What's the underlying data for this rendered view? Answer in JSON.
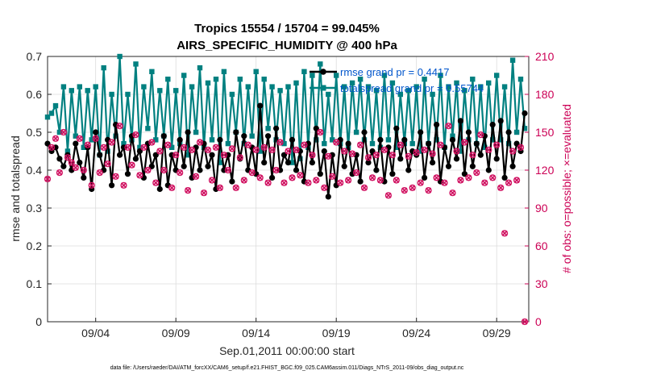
{
  "chart_data": {
    "type": "line",
    "title": "Tropics 15554 / 15704 = 99.045%",
    "subtitle": "AIRS_SPECIFIC_HUMIDITY @ 400 hPa",
    "xlabel": "Sep.01,2011 00:00:00 start",
    "ylabel_left": "rmse and totalspread",
    "ylabel_right": "# of obs: o=possible; ×=evaluated",
    "x_ticks": [
      "09/04",
      "09/09",
      "09/14",
      "09/19",
      "09/24",
      "09/29"
    ],
    "x_tick_days": [
      4,
      9,
      14,
      19,
      24,
      29
    ],
    "xlim": [
      1,
      31
    ],
    "ylim_left": [
      0,
      0.7
    ],
    "ylim_right": [
      0,
      210
    ],
    "y_ticks_left": [
      "0",
      "0.1",
      "0.2",
      "0.3",
      "0.4",
      "0.5",
      "0.6",
      "0.7"
    ],
    "y_ticks_right": [
      "0",
      "30",
      "60",
      "90",
      "120",
      "150",
      "180",
      "210"
    ],
    "legend": [
      "rmse grand pr = 0.4417",
      "totalspread grand pr = 0.55744"
    ],
    "colors": {
      "rmse": "#000000",
      "spread": "#008080",
      "obs": "#d01060",
      "legend_text": "#0055cc",
      "right_axis": "#cc0055"
    },
    "footnote": "data file: /Users/raeder/DAI/ATM_forcXX/CAM6_setup/f.e21.FHIST_BGC.f09_025.CAM6assim.011/Diags_NTrS_2011-09/obs_diag_output.nc",
    "x": [
      1.0,
      1.25,
      1.5,
      1.75,
      2.0,
      2.25,
      2.5,
      2.75,
      3.0,
      3.25,
      3.5,
      3.75,
      4.0,
      4.25,
      4.5,
      4.75,
      5.0,
      5.25,
      5.5,
      5.75,
      6.0,
      6.25,
      6.5,
      6.75,
      7.0,
      7.25,
      7.5,
      7.75,
      8.0,
      8.25,
      8.5,
      8.75,
      9.0,
      9.25,
      9.5,
      9.75,
      10.0,
      10.25,
      10.5,
      10.75,
      11.0,
      11.25,
      11.5,
      11.75,
      12.0,
      12.25,
      12.5,
      12.75,
      13.0,
      13.25,
      13.5,
      13.75,
      14.0,
      14.25,
      14.5,
      14.75,
      15.0,
      15.25,
      15.5,
      15.75,
      16.0,
      16.25,
      16.5,
      16.75,
      17.0,
      17.25,
      17.5,
      17.75,
      18.0,
      18.25,
      18.5,
      18.75,
      19.0,
      19.25,
      19.5,
      19.75,
      20.0,
      20.25,
      20.5,
      20.75,
      21.0,
      21.25,
      21.5,
      21.75,
      22.0,
      22.25,
      22.5,
      22.75,
      23.0,
      23.25,
      23.5,
      23.75,
      24.0,
      24.25,
      24.5,
      24.75,
      25.0,
      25.25,
      25.5,
      25.75,
      26.0,
      26.25,
      26.5,
      26.75,
      27.0,
      27.25,
      27.5,
      27.75,
      28.0,
      28.25,
      28.5,
      28.75,
      29.0,
      29.25,
      29.5,
      29.75,
      30.0,
      30.25,
      30.5,
      30.75
    ],
    "rmse": [
      0.47,
      0.45,
      0.46,
      0.43,
      0.41,
      0.44,
      0.4,
      0.47,
      0.42,
      0.38,
      0.46,
      0.35,
      0.5,
      0.44,
      0.4,
      0.48,
      0.36,
      0.52,
      0.44,
      0.46,
      0.39,
      0.49,
      0.43,
      0.45,
      0.38,
      0.47,
      0.41,
      0.44,
      0.35,
      0.49,
      0.36,
      0.44,
      0.4,
      0.48,
      0.41,
      0.5,
      0.38,
      0.46,
      0.4,
      0.47,
      0.41,
      0.44,
      0.35,
      0.48,
      0.4,
      0.44,
      0.37,
      0.5,
      0.43,
      0.49,
      0.4,
      0.46,
      0.39,
      0.57,
      0.42,
      0.49,
      0.38,
      0.51,
      0.4,
      0.44,
      0.42,
      0.48,
      0.4,
      0.45,
      0.37,
      0.47,
      0.42,
      0.51,
      0.39,
      0.45,
      0.33,
      0.44,
      0.36,
      0.48,
      0.41,
      0.47,
      0.39,
      0.44,
      0.37,
      0.5,
      0.42,
      0.45,
      0.4,
      0.48,
      0.37,
      0.46,
      0.39,
      0.51,
      0.43,
      0.48,
      0.4,
      0.45,
      0.44,
      0.5,
      0.38,
      0.47,
      0.42,
      0.52,
      0.37,
      0.46,
      0.41,
      0.48,
      0.43,
      0.53,
      0.39,
      0.5,
      0.41,
      0.47,
      0.44,
      0.49,
      0.4,
      0.52,
      0.43,
      0.53,
      0.38,
      0.5,
      0.41,
      0.47,
      0.45,
      0.55
    ],
    "spread": [
      0.54,
      0.55,
      0.57,
      0.5,
      0.62,
      0.45,
      0.61,
      0.49,
      0.62,
      0.46,
      0.61,
      0.48,
      0.62,
      0.44,
      0.67,
      0.45,
      0.6,
      0.49,
      0.7,
      0.47,
      0.6,
      0.48,
      0.68,
      0.46,
      0.62,
      0.51,
      0.66,
      0.48,
      0.61,
      0.49,
      0.64,
      0.46,
      0.61,
      0.47,
      0.65,
      0.44,
      0.62,
      0.5,
      0.67,
      0.46,
      0.63,
      0.48,
      0.64,
      0.42,
      0.66,
      0.47,
      0.6,
      0.5,
      0.64,
      0.47,
      0.62,
      0.49,
      0.66,
      0.45,
      0.64,
      0.51,
      0.62,
      0.48,
      0.61,
      0.47,
      0.62,
      0.42,
      0.63,
      0.43,
      0.66,
      0.46,
      0.65,
      0.48,
      0.68,
      0.47,
      0.6,
      0.48,
      0.65,
      0.47,
      0.62,
      0.46,
      0.63,
      0.5,
      0.64,
      0.48,
      0.62,
      0.47,
      0.61,
      0.46,
      0.65,
      0.48,
      0.63,
      0.46,
      0.6,
      0.47,
      0.61,
      0.47,
      0.62,
      0.45,
      0.64,
      0.47,
      0.6,
      0.48,
      0.65,
      0.46,
      0.62,
      0.49,
      0.63,
      0.45,
      0.61,
      0.48,
      0.64,
      0.47,
      0.62,
      0.46,
      0.63,
      0.48,
      0.65,
      0.48,
      0.62,
      0.47,
      0.69,
      0.5,
      0.64,
      0.51
    ],
    "obs": [
      113,
      138,
      145,
      118,
      150,
      130,
      126,
      122,
      145,
      120,
      140,
      108,
      145,
      118,
      138,
      125,
      142,
      115,
      155,
      108,
      138,
      124,
      148,
      116,
      138,
      120,
      142,
      110,
      135,
      120,
      140,
      106,
      132,
      118,
      138,
      104,
      136,
      115,
      142,
      102,
      136,
      112,
      138,
      106,
      132,
      120,
      137,
      106,
      130,
      112,
      140,
      118,
      136,
      114,
      138,
      110,
      136,
      120,
      142,
      110,
      135,
      114,
      136,
      116,
      140,
      110,
      132,
      112,
      150,
      106,
      131,
      115,
      142,
      110,
      135,
      112,
      133,
      118,
      140,
      106,
      130,
      114,
      132,
      112,
      136,
      100,
      132,
      112,
      140,
      104,
      131,
      106,
      134,
      110,
      136,
      104,
      133,
      114,
      140,
      110,
      155,
      102,
      135,
      112,
      142,
      114,
      132,
      118,
      148,
      110,
      136,
      114,
      140,
      106,
      70,
      110,
      135,
      112,
      138,
      0
    ]
  }
}
